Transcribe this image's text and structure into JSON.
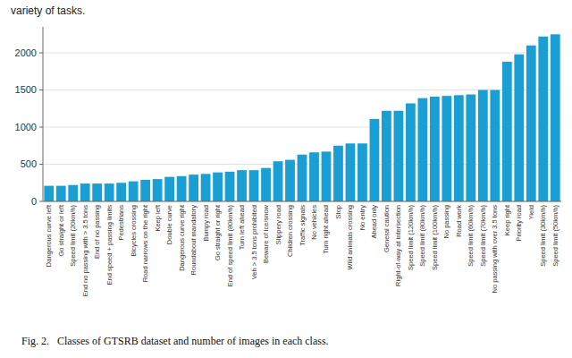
{
  "chart_data": {
    "type": "bar",
    "title": "Fig. 2.   Classes of GTSRB dataset and number of images in each class.",
    "annotations": [
      "variety of tasks."
    ],
    "categories": [
      "Dangerous curve left",
      "Go straight or left",
      "Speed limit (20km/h)",
      "End no passing with > 3.5 tons",
      "End of no passing",
      "End speed + passing limits",
      "Pedestrians",
      "Bicycles crossing",
      "Road narrows on the right",
      "Keep left",
      "Double curve",
      "Dangerous curve right",
      "Roundabout mandatory",
      "Bumpy road",
      "Go straight or right",
      "End of speed limit (80km/h)",
      "Turn left ahead",
      "Veh > 3.5 tons prohibited",
      "Beware of ice/snow",
      "Slippery road",
      "Children crossing",
      "Traffic signals",
      "No vehicles",
      "Turn right ahead",
      "Stop",
      "Wild animals crossing",
      "No entry",
      "Ahead only",
      "General caution",
      "Right-of-way at intersection",
      "Speed limit (120km/h)",
      "Speed limit (80km/h)",
      "Speed limit (100km/h)",
      "No passing",
      "Road work",
      "Speed limit (60km/h)",
      "Speed limit (70km/h)",
      "No passing with over 3.5 tons",
      "Keep right",
      "Priority road",
      "Yield",
      "Speed limit (30km/h)",
      "Speed limit (50km/h)"
    ],
    "values": [
      210,
      210,
      220,
      240,
      240,
      240,
      250,
      270,
      290,
      300,
      330,
      340,
      360,
      370,
      390,
      400,
      420,
      420,
      450,
      540,
      560,
      630,
      660,
      670,
      750,
      780,
      780,
      1110,
      1220,
      1220,
      1320,
      1390,
      1410,
      1420,
      1430,
      1440,
      1500,
      1500,
      1880,
      1980,
      2100,
      2220,
      2250
    ],
    "color": "#1a9fd4",
    "ylim": [
      0,
      2350
    ],
    "yticks": [
      0,
      500,
      1000,
      1500,
      2000
    ],
    "grid": true
  }
}
